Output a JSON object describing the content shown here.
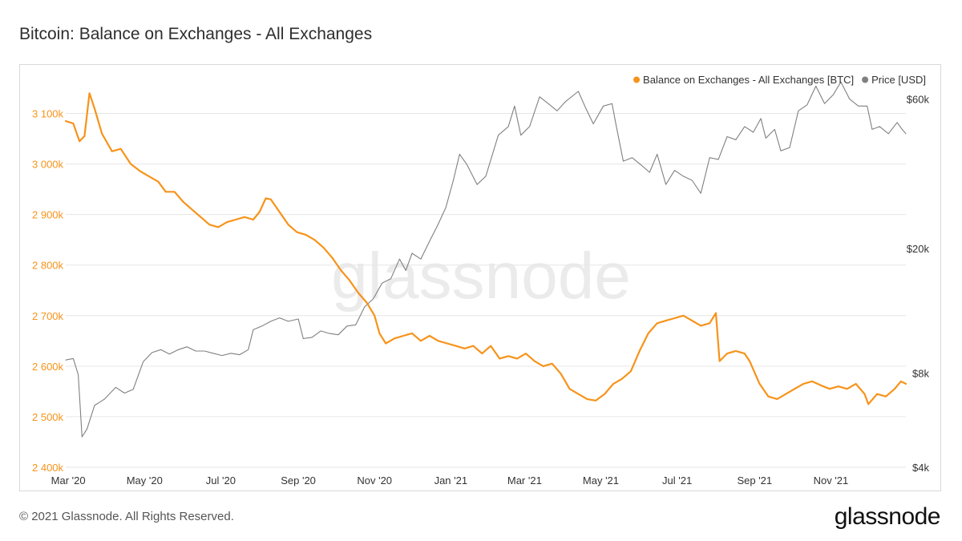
{
  "header": {
    "title": "Bitcoin: Balance on Exchanges - All Exchanges"
  },
  "footer": {
    "copyright": "© 2021 Glassnode. All Rights Reserved.",
    "brand": "glassnode"
  },
  "watermark": "glassnode",
  "colors": {
    "balance": "#f7931a",
    "price": "#808080",
    "grid": "#e6e6e6",
    "axis": "#333333"
  },
  "chart_data": {
    "type": "line",
    "title": "Bitcoin: Balance on Exchanges - All Exchanges",
    "x_range": [
      "2020-02-28",
      "2021-12-31"
    ],
    "x_ticks": [
      {
        "label": "Mar '20",
        "date": "2020-03-01"
      },
      {
        "label": "May '20",
        "date": "2020-05-01"
      },
      {
        "label": "Jul '20",
        "date": "2020-07-01"
      },
      {
        "label": "Sep '20",
        "date": "2020-09-01"
      },
      {
        "label": "Nov '20",
        "date": "2020-11-01"
      },
      {
        "label": "Jan '21",
        "date": "2021-01-01"
      },
      {
        "label": "Mar '21",
        "date": "2021-03-01"
      },
      {
        "label": "May '21",
        "date": "2021-05-01"
      },
      {
        "label": "Jul '21",
        "date": "2021-07-01"
      },
      {
        "label": "Sep '21",
        "date": "2021-09-01"
      },
      {
        "label": "Nov '21",
        "date": "2021-11-01"
      }
    ],
    "y_left": {
      "ylim": [
        2400000,
        3150000
      ],
      "ticks": [
        {
          "label": "2 400k",
          "value": 2400000
        },
        {
          "label": "2 500k",
          "value": 2500000
        },
        {
          "label": "2 600k",
          "value": 2600000
        },
        {
          "label": "2 700k",
          "value": 2700000
        },
        {
          "label": "2 800k",
          "value": 2800000
        },
        {
          "label": "2 900k",
          "value": 2900000
        },
        {
          "label": "3 000k",
          "value": 3000000
        },
        {
          "label": "3 100k",
          "value": 3100000
        }
      ]
    },
    "y_right": {
      "scale": "log",
      "ylim": [
        4000,
        65000
      ],
      "ticks": [
        {
          "label": "$4k",
          "value": 4000
        },
        {
          "label": "$8k",
          "value": 8000
        },
        {
          "label": "$20k",
          "value": 20000
        },
        {
          "label": "$60k",
          "value": 60000
        }
      ]
    },
    "grid": true,
    "legend_position": "top-right",
    "series": [
      {
        "name": "Balance on Exchanges - All Exchanges [BTC]",
        "axis": "left",
        "points": [
          [
            "2020-02-28",
            3085000
          ],
          [
            "2020-03-05",
            3080000
          ],
          [
            "2020-03-10",
            3045000
          ],
          [
            "2020-03-14",
            3055000
          ],
          [
            "2020-03-18",
            3140000
          ],
          [
            "2020-03-22",
            3110000
          ],
          [
            "2020-03-28",
            3060000
          ],
          [
            "2020-04-05",
            3025000
          ],
          [
            "2020-04-12",
            3030000
          ],
          [
            "2020-04-20",
            3000000
          ],
          [
            "2020-04-28",
            2985000
          ],
          [
            "2020-05-05",
            2975000
          ],
          [
            "2020-05-12",
            2965000
          ],
          [
            "2020-05-18",
            2945000
          ],
          [
            "2020-05-25",
            2945000
          ],
          [
            "2020-06-01",
            2925000
          ],
          [
            "2020-06-08",
            2910000
          ],
          [
            "2020-06-15",
            2895000
          ],
          [
            "2020-06-22",
            2880000
          ],
          [
            "2020-06-29",
            2875000
          ],
          [
            "2020-07-06",
            2885000
          ],
          [
            "2020-07-13",
            2890000
          ],
          [
            "2020-07-20",
            2895000
          ],
          [
            "2020-07-27",
            2890000
          ],
          [
            "2020-08-01",
            2905000
          ],
          [
            "2020-08-06",
            2932000
          ],
          [
            "2020-08-10",
            2930000
          ],
          [
            "2020-08-17",
            2905000
          ],
          [
            "2020-08-24",
            2880000
          ],
          [
            "2020-08-31",
            2865000
          ],
          [
            "2020-09-07",
            2860000
          ],
          [
            "2020-09-14",
            2850000
          ],
          [
            "2020-09-21",
            2835000
          ],
          [
            "2020-09-28",
            2815000
          ],
          [
            "2020-10-05",
            2790000
          ],
          [
            "2020-10-12",
            2770000
          ],
          [
            "2020-10-19",
            2745000
          ],
          [
            "2020-10-26",
            2725000
          ],
          [
            "2020-11-01",
            2700000
          ],
          [
            "2020-11-05",
            2665000
          ],
          [
            "2020-11-10",
            2645000
          ],
          [
            "2020-11-17",
            2655000
          ],
          [
            "2020-11-24",
            2660000
          ],
          [
            "2020-12-01",
            2665000
          ],
          [
            "2020-12-08",
            2650000
          ],
          [
            "2020-12-15",
            2660000
          ],
          [
            "2020-12-22",
            2650000
          ],
          [
            "2020-12-29",
            2645000
          ],
          [
            "2021-01-05",
            2640000
          ],
          [
            "2021-01-12",
            2635000
          ],
          [
            "2021-01-19",
            2640000
          ],
          [
            "2021-01-26",
            2625000
          ],
          [
            "2021-02-02",
            2640000
          ],
          [
            "2021-02-09",
            2615000
          ],
          [
            "2021-02-16",
            2620000
          ],
          [
            "2021-02-23",
            2615000
          ],
          [
            "2021-03-02",
            2625000
          ],
          [
            "2021-03-09",
            2610000
          ],
          [
            "2021-03-16",
            2600000
          ],
          [
            "2021-03-23",
            2605000
          ],
          [
            "2021-03-30",
            2585000
          ],
          [
            "2021-04-06",
            2555000
          ],
          [
            "2021-04-13",
            2545000
          ],
          [
            "2021-04-20",
            2535000
          ],
          [
            "2021-04-27",
            2532000
          ],
          [
            "2021-05-04",
            2545000
          ],
          [
            "2021-05-11",
            2565000
          ],
          [
            "2021-05-18",
            2575000
          ],
          [
            "2021-05-25",
            2590000
          ],
          [
            "2021-06-01",
            2630000
          ],
          [
            "2021-06-08",
            2665000
          ],
          [
            "2021-06-15",
            2685000
          ],
          [
            "2021-06-22",
            2690000
          ],
          [
            "2021-06-29",
            2695000
          ],
          [
            "2021-07-06",
            2700000
          ],
          [
            "2021-07-13",
            2690000
          ],
          [
            "2021-07-20",
            2680000
          ],
          [
            "2021-07-27",
            2685000
          ],
          [
            "2021-08-01",
            2705000
          ],
          [
            "2021-08-04",
            2610000
          ],
          [
            "2021-08-10",
            2625000
          ],
          [
            "2021-08-17",
            2630000
          ],
          [
            "2021-08-24",
            2625000
          ],
          [
            "2021-08-28",
            2610000
          ],
          [
            "2021-09-05",
            2565000
          ],
          [
            "2021-09-12",
            2540000
          ],
          [
            "2021-09-19",
            2535000
          ],
          [
            "2021-09-26",
            2545000
          ],
          [
            "2021-10-03",
            2555000
          ],
          [
            "2021-10-10",
            2565000
          ],
          [
            "2021-10-17",
            2570000
          ],
          [
            "2021-10-24",
            2562000
          ],
          [
            "2021-10-31",
            2555000
          ],
          [
            "2021-11-07",
            2560000
          ],
          [
            "2021-11-14",
            2555000
          ],
          [
            "2021-11-21",
            2565000
          ],
          [
            "2021-11-28",
            2545000
          ],
          [
            "2021-12-01",
            2525000
          ],
          [
            "2021-12-08",
            2545000
          ],
          [
            "2021-12-15",
            2540000
          ],
          [
            "2021-12-22",
            2555000
          ],
          [
            "2021-12-27",
            2570000
          ],
          [
            "2021-12-31",
            2565000
          ]
        ]
      },
      {
        "name": "Price [USD]",
        "axis": "right",
        "points": [
          [
            "2020-02-28",
            8800
          ],
          [
            "2020-03-05",
            8900
          ],
          [
            "2020-03-09",
            7900
          ],
          [
            "2020-03-12",
            5000
          ],
          [
            "2020-03-16",
            5300
          ],
          [
            "2020-03-22",
            6300
          ],
          [
            "2020-03-30",
            6600
          ],
          [
            "2020-04-08",
            7200
          ],
          [
            "2020-04-15",
            6900
          ],
          [
            "2020-04-22",
            7100
          ],
          [
            "2020-04-30",
            8700
          ],
          [
            "2020-05-07",
            9300
          ],
          [
            "2020-05-14",
            9500
          ],
          [
            "2020-05-21",
            9200
          ],
          [
            "2020-05-28",
            9500
          ],
          [
            "2020-06-04",
            9700
          ],
          [
            "2020-06-11",
            9400
          ],
          [
            "2020-06-18",
            9400
          ],
          [
            "2020-06-25",
            9250
          ],
          [
            "2020-07-02",
            9100
          ],
          [
            "2020-07-09",
            9250
          ],
          [
            "2020-07-16",
            9150
          ],
          [
            "2020-07-23",
            9500
          ],
          [
            "2020-07-27",
            11000
          ],
          [
            "2020-08-03",
            11300
          ],
          [
            "2020-08-10",
            11700
          ],
          [
            "2020-08-17",
            12000
          ],
          [
            "2020-08-24",
            11700
          ],
          [
            "2020-09-01",
            11900
          ],
          [
            "2020-09-05",
            10300
          ],
          [
            "2020-09-12",
            10400
          ],
          [
            "2020-09-19",
            10900
          ],
          [
            "2020-09-26",
            10700
          ],
          [
            "2020-10-03",
            10600
          ],
          [
            "2020-10-10",
            11300
          ],
          [
            "2020-10-17",
            11400
          ],
          [
            "2020-10-24",
            13000
          ],
          [
            "2020-10-31",
            13800
          ],
          [
            "2020-11-07",
            15500
          ],
          [
            "2020-11-14",
            16000
          ],
          [
            "2020-11-21",
            18500
          ],
          [
            "2020-11-26",
            17000
          ],
          [
            "2020-12-01",
            19300
          ],
          [
            "2020-12-08",
            18500
          ],
          [
            "2020-12-16",
            21500
          ],
          [
            "2020-12-21",
            23500
          ],
          [
            "2020-12-28",
            27000
          ],
          [
            "2021-01-03",
            33000
          ],
          [
            "2021-01-08",
            40000
          ],
          [
            "2021-01-14",
            37000
          ],
          [
            "2021-01-22",
            32000
          ],
          [
            "2021-01-29",
            34000
          ],
          [
            "2021-02-08",
            46000
          ],
          [
            "2021-02-16",
            49000
          ],
          [
            "2021-02-21",
            57000
          ],
          [
            "2021-02-26",
            46000
          ],
          [
            "2021-03-05",
            49000
          ],
          [
            "2021-03-13",
            61000
          ],
          [
            "2021-03-20",
            58000
          ],
          [
            "2021-03-27",
            55000
          ],
          [
            "2021-04-03",
            59000
          ],
          [
            "2021-04-13",
            63500
          ],
          [
            "2021-04-19",
            56000
          ],
          [
            "2021-04-25",
            50000
          ],
          [
            "2021-05-03",
            57000
          ],
          [
            "2021-05-10",
            58000
          ],
          [
            "2021-05-13",
            50000
          ],
          [
            "2021-05-19",
            38000
          ],
          [
            "2021-05-26",
            39000
          ],
          [
            "2021-06-02",
            37000
          ],
          [
            "2021-06-09",
            35000
          ],
          [
            "2021-06-15",
            40000
          ],
          [
            "2021-06-22",
            32000
          ],
          [
            "2021-06-29",
            35500
          ],
          [
            "2021-07-06",
            34000
          ],
          [
            "2021-07-13",
            33000
          ],
          [
            "2021-07-20",
            30000
          ],
          [
            "2021-07-27",
            39000
          ],
          [
            "2021-08-03",
            38500
          ],
          [
            "2021-08-10",
            45500
          ],
          [
            "2021-08-17",
            44500
          ],
          [
            "2021-08-24",
            49000
          ],
          [
            "2021-08-31",
            47000
          ],
          [
            "2021-09-06",
            52000
          ],
          [
            "2021-09-10",
            45000
          ],
          [
            "2021-09-17",
            48000
          ],
          [
            "2021-09-22",
            41000
          ],
          [
            "2021-09-29",
            42000
          ],
          [
            "2021-10-06",
            55000
          ],
          [
            "2021-10-13",
            57500
          ],
          [
            "2021-10-20",
            66000
          ],
          [
            "2021-10-27",
            58000
          ],
          [
            "2021-11-03",
            62000
          ],
          [
            "2021-11-09",
            68000
          ],
          [
            "2021-11-16",
            60000
          ],
          [
            "2021-11-23",
            57000
          ],
          [
            "2021-11-30",
            57000
          ],
          [
            "2021-12-04",
            48000
          ],
          [
            "2021-12-10",
            49000
          ],
          [
            "2021-12-17",
            46500
          ],
          [
            "2021-12-24",
            50500
          ],
          [
            "2021-12-28",
            48000
          ],
          [
            "2021-12-31",
            46500
          ]
        ]
      }
    ]
  }
}
